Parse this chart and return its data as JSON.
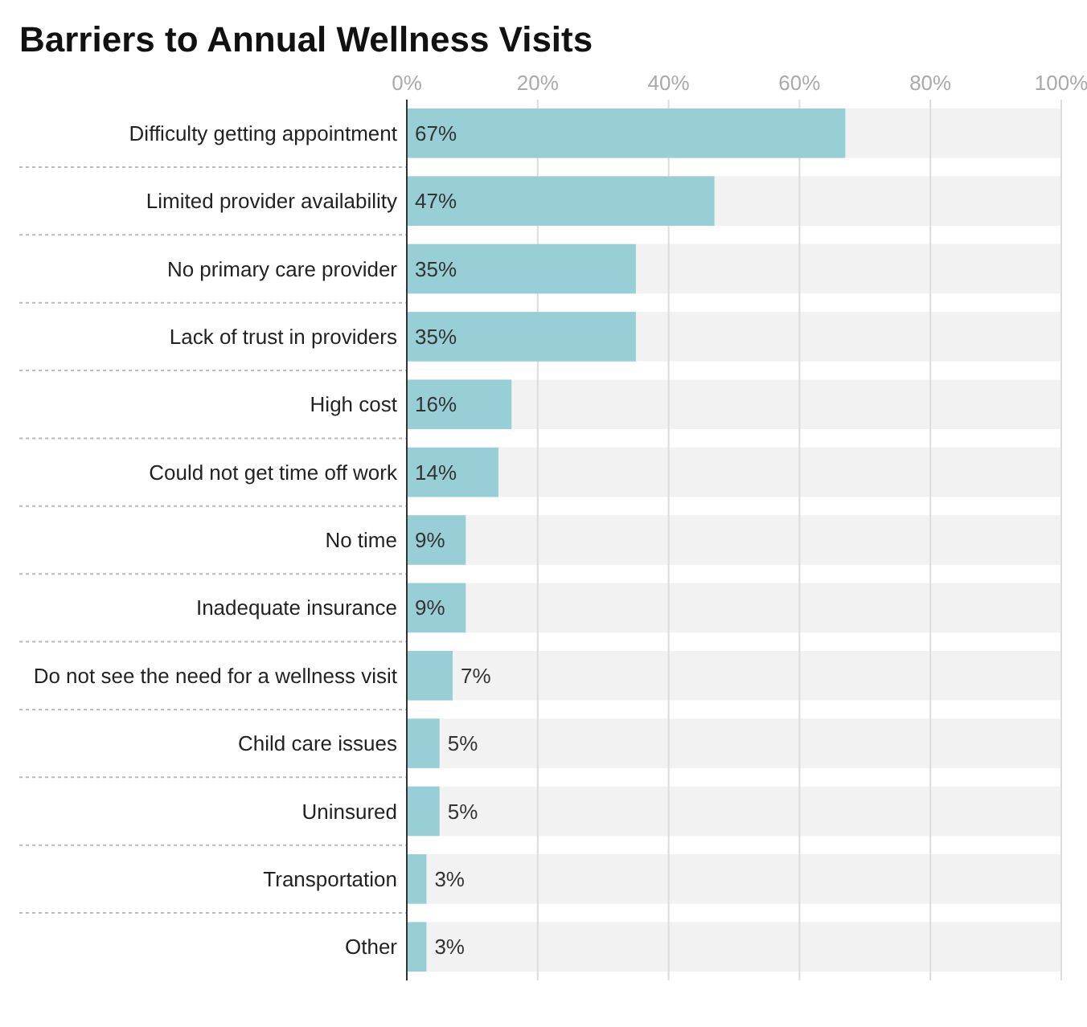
{
  "chart_data": {
    "type": "bar",
    "orientation": "horizontal",
    "title": "Barriers to Annual Wellness Visits",
    "categories": [
      "Difficulty getting appointment",
      "Limited provider availability",
      "No primary care provider",
      "Lack of trust in providers",
      "High cost",
      "Could not get time off work",
      "No time",
      "Inadequate insurance",
      "Do not see the need for a wellness visit",
      "Child care issues",
      "Uninsured",
      "Transportation",
      "Other"
    ],
    "values": [
      67,
      47,
      35,
      35,
      16,
      14,
      9,
      9,
      7,
      5,
      5,
      3,
      3
    ],
    "value_labels": [
      "67%",
      "47%",
      "35%",
      "35%",
      "16%",
      "14%",
      "9%",
      "9%",
      "7%",
      "5%",
      "5%",
      "3%",
      "3%"
    ],
    "color": "#98cfd6",
    "xlim": [
      0,
      100
    ],
    "xticks": [
      {
        "value": 0,
        "label": "0%"
      },
      {
        "value": 20,
        "label": "20%"
      },
      {
        "value": 40,
        "label": "40%"
      },
      {
        "value": 60,
        "label": "60%"
      },
      {
        "value": 80,
        "label": "80%"
      },
      {
        "value": 100,
        "label": "100%"
      }
    ],
    "grid": "x"
  }
}
